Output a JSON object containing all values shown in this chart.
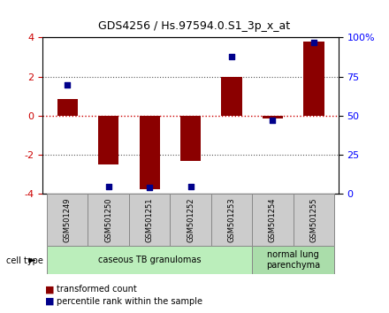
{
  "title": "GDS4256 / Hs.97594.0.S1_3p_x_at",
  "samples": [
    "GSM501249",
    "GSM501250",
    "GSM501251",
    "GSM501252",
    "GSM501253",
    "GSM501254",
    "GSM501255"
  ],
  "transformed_counts": [
    0.85,
    -2.5,
    -3.75,
    -2.3,
    2.0,
    -0.15,
    3.8
  ],
  "percentile_ranks": [
    70,
    5,
    4,
    5,
    88,
    47,
    97
  ],
  "ylim": [
    -4,
    4
  ],
  "y2lim": [
    0,
    100
  ],
  "yticks": [
    -4,
    -2,
    0,
    2,
    4
  ],
  "y2ticks": [
    0,
    25,
    50,
    75,
    100
  ],
  "y2ticklabels": [
    "0",
    "25",
    "50",
    "75",
    "100%"
  ],
  "bar_color": "#8B0000",
  "dot_color": "#00008B",
  "zero_line_color": "#CC0000",
  "dotted_line_color": "#555555",
  "groups": [
    {
      "label": "caseous TB granulomas",
      "start": 0,
      "end": 5,
      "color": "#bbeebb"
    },
    {
      "label": "normal lung\nparenchyma",
      "start": 5,
      "end": 7,
      "color": "#aaddaa"
    }
  ],
  "cell_type_label": "cell type",
  "legend_items": [
    {
      "color": "#8B0000",
      "label": "transformed count"
    },
    {
      "color": "#00008B",
      "label": "percentile rank within the sample"
    }
  ],
  "sample_box_color": "#cccccc",
  "sample_box_border": "#888888"
}
